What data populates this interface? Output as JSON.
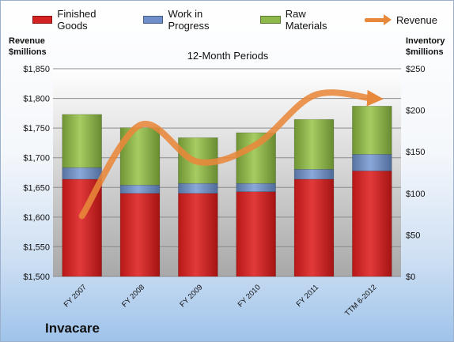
{
  "chart_data": {
    "type": "bar",
    "subtitle": "12-Month Periods",
    "company": "Invacare",
    "categories": [
      "FY 2007",
      "FY 2008",
      "FY 2009",
      "FY 2010",
      "FY 2011",
      "TTM 6-2012"
    ],
    "left_axis": {
      "title": "Revenue $millions",
      "ylim": [
        1500,
        1850
      ],
      "ticks": [
        "$1,500",
        "$1,550",
        "$1,600",
        "$1,650",
        "$1,700",
        "$1,750",
        "$1,800",
        "$1,850"
      ]
    },
    "right_axis": {
      "title": "Inventory $millions",
      "ylim": [
        0,
        250
      ],
      "ticks": [
        "$0",
        "$50",
        "$100",
        "$150",
        "$200",
        "$250"
      ]
    },
    "series": [
      {
        "name": "Finished Goods",
        "axis": "right",
        "stacked": true,
        "color": "#d42222",
        "values": [
          117,
          100,
          100,
          102,
          117,
          127
        ]
      },
      {
        "name": "Work in Progress",
        "axis": "right",
        "stacked": true,
        "color": "#6f8fca",
        "values": [
          14,
          10,
          12,
          10,
          12,
          20
        ]
      },
      {
        "name": "Raw Materials",
        "axis": "right",
        "stacked": true,
        "color": "#8fb84a",
        "values": [
          64,
          69,
          55,
          61,
          60,
          58
        ]
      },
      {
        "name": "Revenue",
        "axis": "left",
        "type": "line",
        "color": "#e8883a",
        "values": [
          1602,
          1755,
          1693,
          1722,
          1805,
          1800
        ]
      }
    ],
    "grid": true,
    "legend_position": "top"
  }
}
